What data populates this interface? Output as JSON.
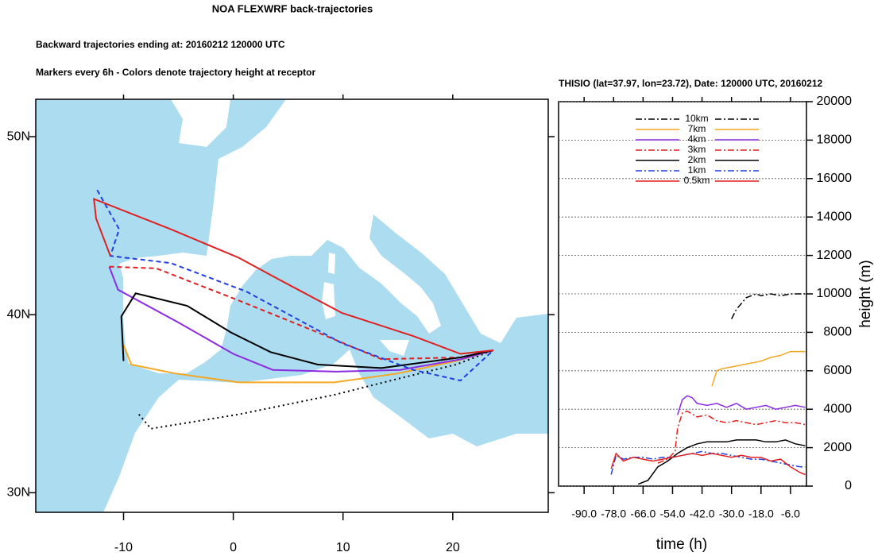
{
  "chart_data": [
    {
      "type": "map",
      "title": "NOA FLEXWRF back-trajectories",
      "subtitle": [
        "Backward trajectories ending at: 20160212  120000 UTC",
        "Markers every 6h - Colors denote trajectory height at receptor"
      ],
      "xlim": [
        -18,
        28.7
      ],
      "ylim": [
        28.9,
        52.1
      ],
      "xticks": [
        -10,
        0,
        10,
        20
      ],
      "yticks": [
        {
          "value": 30,
          "label": "30N"
        },
        {
          "value": 40,
          "label": "40N"
        },
        {
          "value": 50,
          "label": "50N"
        }
      ],
      "ocean_color": "#abdcf0",
      "series": [
        {
          "color": "#000000",
          "dash": "dotted",
          "x": [
            -8.6,
            -7.5,
            0.5,
            9.2,
            15.0,
            20.3,
            23.7
          ],
          "values": [
            34.4,
            33.6,
            34.4,
            35.5,
            36.4,
            37.2,
            38.0
          ]
        },
        {
          "color": "#f5a623",
          "dash": "solid",
          "x": [
            -10.0,
            -9.3,
            -5.3,
            0.5,
            9.2,
            15.0,
            20.3,
            23.7
          ],
          "values": [
            38.3,
            37.2,
            36.7,
            36.2,
            36.2,
            36.7,
            37.4,
            38.0
          ]
        },
        {
          "color": "#8b2be2",
          "dash": "solid",
          "x": [
            -11.3,
            -10.5,
            -5.1,
            0.0,
            3.6,
            9.4,
            15.2,
            20.8,
            23.7
          ],
          "values": [
            42.7,
            41.4,
            39.6,
            37.8,
            36.9,
            36.8,
            36.9,
            37.5,
            38.0
          ]
        },
        {
          "color": "#e02020",
          "dash": "dashed",
          "x": [
            -11.3,
            -7.0,
            0.5,
            7.7,
            13.5,
            20.7,
            23.7
          ],
          "values": [
            42.7,
            42.6,
            40.8,
            39.0,
            37.5,
            37.6,
            38.0
          ]
        },
        {
          "color": "#000000",
          "dash": "solid",
          "x": [
            -10.0,
            -10.2,
            -8.9,
            -4.2,
            -0.2,
            3.4,
            7.7,
            13.5,
            20.7,
            23.7
          ],
          "values": [
            37.4,
            39.9,
            41.2,
            40.5,
            39.0,
            37.9,
            37.2,
            37.0,
            37.6,
            38.0
          ]
        },
        {
          "color": "#1f3fe0",
          "dash": "dashed",
          "x": [
            -12.4,
            -10.4,
            -11.2,
            -5.7,
            1.2,
            9.9,
            16.4,
            20.7,
            23.7
          ],
          "values": [
            47.0,
            44.8,
            43.3,
            42.9,
            41.3,
            38.4,
            36.9,
            36.3,
            38.0
          ]
        },
        {
          "color": "#e02020",
          "dash": "solid",
          "x": [
            -11.2,
            -12.5,
            -12.7,
            -5.7,
            0.5,
            4.1,
            9.9,
            16.4,
            20.7,
            23.7
          ],
          "values": [
            43.3,
            45.4,
            46.5,
            44.8,
            43.2,
            42.0,
            40.1,
            38.8,
            37.8,
            38.0
          ]
        }
      ]
    },
    {
      "type": "line",
      "title": "THISIO (lat=37.97,  lon=23.72), Date: 120000 UTC, 20160212",
      "xlabel": "time (h)",
      "ylabel": "height (m)",
      "xlim": [
        -100.4,
        0.5
      ],
      "ylim": [
        0,
        20000
      ],
      "xticks": [
        {
          "value": -90,
          "label": "-90.0"
        },
        {
          "value": -78,
          "label": "-78.0"
        },
        {
          "value": -66,
          "label": "-66.0"
        },
        {
          "value": -54,
          "label": "-54.0"
        },
        {
          "value": -42,
          "label": "-42.0"
        },
        {
          "value": -30,
          "label": "-30.0"
        },
        {
          "value": -18,
          "label": "-18.0"
        },
        {
          "value": -6,
          "label": "-6.0"
        }
      ],
      "yticks": [
        0,
        2000,
        4000,
        6000,
        8000,
        10000,
        12000,
        14000,
        16000,
        18000,
        20000
      ],
      "grid": true,
      "series": [
        {
          "name": "10km",
          "color": "#000000",
          "dash": "dashdot",
          "x": [
            -30,
            -28,
            -26,
            -24,
            -22,
            -20,
            -18,
            -14,
            -10,
            -6,
            -2,
            0
          ],
          "values": [
            8700,
            9200,
            9500,
            9800,
            9900,
            10000,
            9900,
            10000,
            9900,
            10000,
            10000,
            10000
          ]
        },
        {
          "name": "7km",
          "color": "#f5a623",
          "dash": "solid",
          "x": [
            -38,
            -36,
            -34,
            -30,
            -26,
            -22,
            -18,
            -14,
            -10,
            -6,
            -4,
            0
          ],
          "values": [
            5200,
            6000,
            6100,
            6200,
            6300,
            6400,
            6500,
            6700,
            6800,
            7000,
            7000,
            7000
          ]
        },
        {
          "name": "4km",
          "color": "#8b2be2",
          "dash": "solid",
          "x": [
            -52,
            -50,
            -48,
            -46,
            -44,
            -40,
            -36,
            -32,
            -28,
            -24,
            -20,
            -16,
            -12,
            -8,
            -4,
            0
          ],
          "values": [
            3700,
            4500,
            4700,
            4600,
            4300,
            4200,
            4300,
            4100,
            4300,
            4000,
            4100,
            4200,
            4000,
            4100,
            4200,
            4100
          ]
        },
        {
          "name": "3km",
          "color": "#e02020",
          "dash": "dashdot",
          "x": [
            -60,
            -56,
            -53,
            -52,
            -50,
            -48,
            -44,
            -40,
            -36,
            -32,
            -28,
            -24,
            -20,
            -16,
            -12,
            -8,
            -4,
            0
          ],
          "values": [
            1200,
            1400,
            1800,
            3000,
            3800,
            3900,
            3600,
            3700,
            3400,
            3300,
            3400,
            3300,
            3200,
            3300,
            3400,
            3300,
            3300,
            3200
          ]
        },
        {
          "name": "2km",
          "color": "#000000",
          "dash": "solid",
          "x": [
            -68,
            -64,
            -60,
            -56,
            -52,
            -48,
            -44,
            -40,
            -36,
            -32,
            -28,
            -24,
            -20,
            -16,
            -12,
            -8,
            -4,
            0
          ],
          "values": [
            100,
            300,
            1000,
            1300,
            1700,
            2000,
            2200,
            2300,
            2300,
            2300,
            2400,
            2400,
            2400,
            2300,
            2300,
            2400,
            2200,
            2100
          ]
        },
        {
          "name": "1km",
          "color": "#1f3fe0",
          "dash": "dashdot",
          "x": [
            -79,
            -77,
            -74,
            -70,
            -66,
            -62,
            -58,
            -54,
            -50,
            -46,
            -42,
            -38,
            -34,
            -30,
            -26,
            -22,
            -18,
            -14,
            -10,
            -6,
            -2,
            0
          ],
          "values": [
            600,
            1600,
            1400,
            1500,
            1500,
            1400,
            1500,
            1500,
            1600,
            1700,
            1800,
            1700,
            1700,
            1600,
            1500,
            1400,
            1400,
            1300,
            1200,
            1100,
            1000,
            1000
          ]
        },
        {
          "name": "0.5km",
          "color": "#e02020",
          "dash": "solid",
          "x": [
            -79,
            -77,
            -74,
            -70,
            -66,
            -62,
            -58,
            -54,
            -50,
            -46,
            -42,
            -38,
            -34,
            -30,
            -26,
            -22,
            -18,
            -14,
            -10,
            -6,
            -2,
            0
          ],
          "values": [
            900,
            1700,
            1300,
            1500,
            1400,
            1300,
            1400,
            1500,
            1600,
            1700,
            1600,
            1700,
            1600,
            1500,
            1600,
            1500,
            1500,
            1300,
            1400,
            1000,
            700,
            600
          ]
        }
      ]
    }
  ]
}
